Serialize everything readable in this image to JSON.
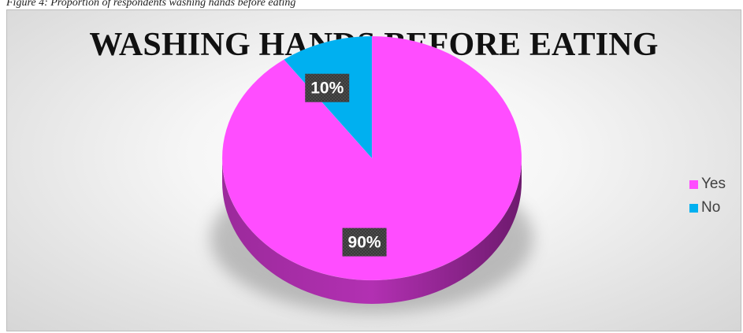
{
  "caption": "Figure 4: Proportion of respondents washing hands before eating",
  "chart_data": {
    "type": "pie",
    "title": "WASHING HANDS BEFORE EATING",
    "categories": [
      "Yes",
      "No"
    ],
    "values": [
      90,
      10
    ],
    "data_labels": [
      "90%",
      "10%"
    ],
    "colors": [
      "#ff4dff",
      "#00b0f0"
    ],
    "legend_position": "right",
    "style": "3d"
  }
}
